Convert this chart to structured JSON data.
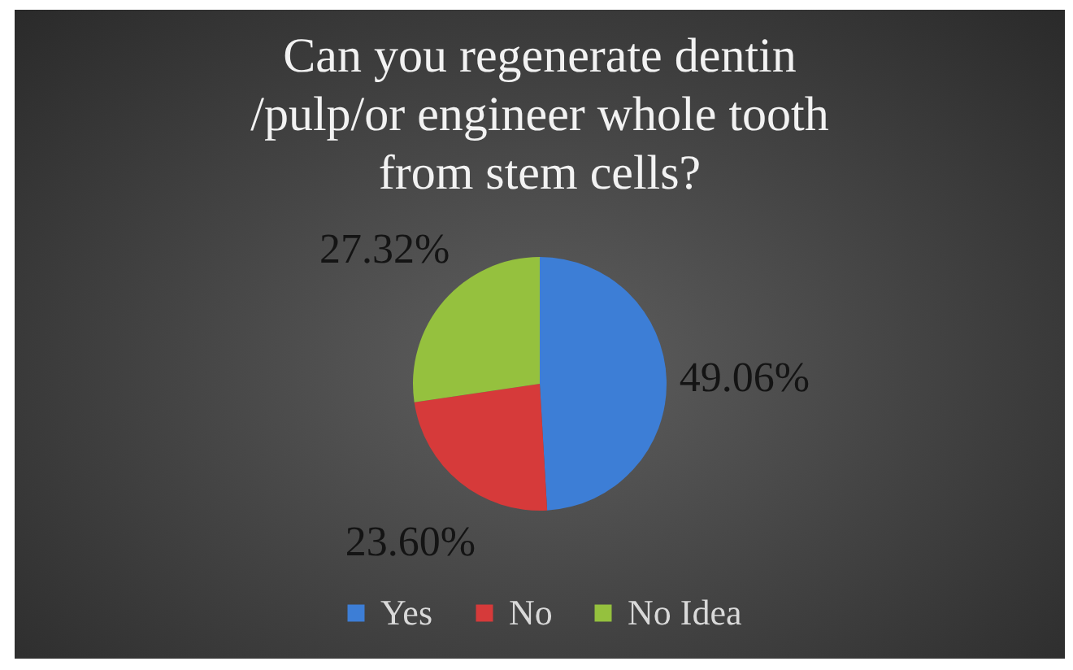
{
  "chart_data": {
    "type": "pie",
    "title": "Can you regenerate dentin\n/pulp/or engineer whole tooth\nfrom stem cells?",
    "categories": [
      "Yes",
      "No",
      "No Idea"
    ],
    "values": [
      49.06,
      23.6,
      27.32
    ],
    "colors": [
      "#3d7ed6",
      "#d63a3a",
      "#95c13e"
    ],
    "value_labels": [
      "49.06%",
      "23.60%",
      "27.32%"
    ],
    "legend": "bottom"
  }
}
